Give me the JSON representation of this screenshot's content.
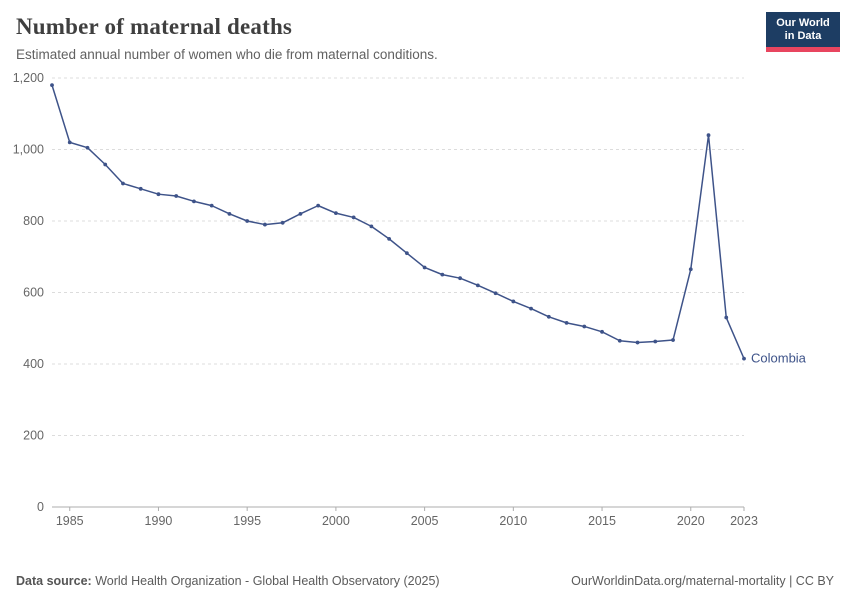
{
  "chart_data": {
    "type": "line",
    "title": "Number of maternal deaths",
    "subtitle": "Estimated annual number of women who die from maternal conditions.",
    "x": [
      1984,
      1985,
      1986,
      1987,
      1988,
      1989,
      1990,
      1991,
      1992,
      1993,
      1994,
      1995,
      1996,
      1997,
      1998,
      1999,
      2000,
      2001,
      2002,
      2003,
      2004,
      2005,
      2006,
      2007,
      2008,
      2009,
      2010,
      2011,
      2012,
      2013,
      2014,
      2015,
      2016,
      2017,
      2018,
      2019,
      2020,
      2021,
      2022,
      2023
    ],
    "series": [
      {
        "name": "Colombia",
        "color": "#3e5389",
        "values": [
          1180,
          1020,
          1005,
          958,
          905,
          890,
          875,
          870,
          855,
          843,
          820,
          800,
          790,
          795,
          820,
          843,
          822,
          810,
          785,
          750,
          710,
          670,
          650,
          640,
          620,
          598,
          575,
          555,
          532,
          515,
          505,
          490,
          465,
          460,
          463,
          467,
          665,
          1040,
          530,
          415
        ]
      }
    ],
    "x_ticks": [
      1985,
      1990,
      1995,
      2000,
      2005,
      2010,
      2015,
      2020,
      2023
    ],
    "y_ticks": [
      0,
      200,
      400,
      600,
      800,
      1000,
      1200
    ],
    "xlim": [
      1984,
      2023
    ],
    "ylim": [
      0,
      1200
    ],
    "grid": "horizontal-dashed",
    "legend_position": "end-of-line-label"
  },
  "logo": {
    "line1": "Our World",
    "line2": "in Data",
    "bg_color": "#1d3d63",
    "accent_color": "#e8455f"
  },
  "footer": {
    "source_label": "Data source:",
    "source": "World Health Organization - Global Health Observatory (2025)",
    "right": "OurWorldinData.org/maternal-mortality | CC BY"
  }
}
